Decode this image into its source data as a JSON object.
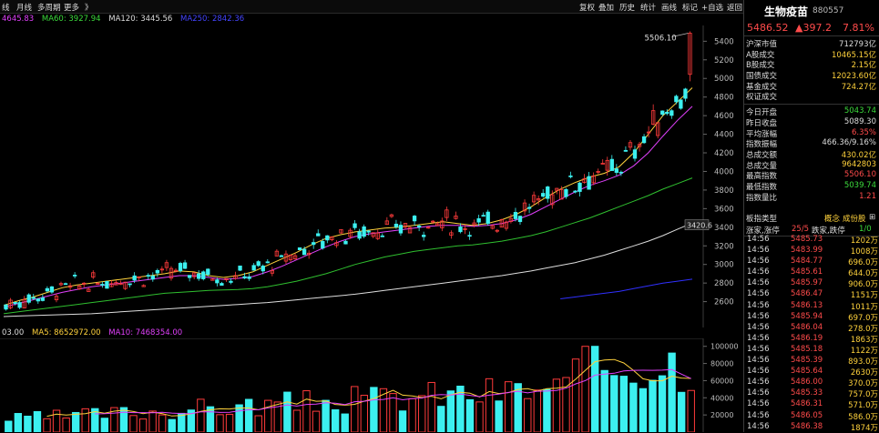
{
  "toolbar": {
    "left_items": [
      "线",
      "月线",
      "多周期",
      "更多",
      "》"
    ],
    "right_items": [
      "复权",
      "叠加",
      "历史",
      "统计",
      "画线",
      "标记",
      "+自选",
      "返回"
    ]
  },
  "ma_legend": [
    {
      "label": "4645.83",
      "color": "#e040fb"
    },
    {
      "label": "MA60: 3927.94",
      "color": "#3cdc3c"
    },
    {
      "label": "MA120: 3445.56",
      "color": "#dddddd"
    },
    {
      "label": "MA250: 2842.36",
      "color": "#4444ff"
    }
  ],
  "vol_legend": [
    {
      "label": "03.00",
      "color": "#dddddd"
    },
    {
      "label": "MA5: 8652972.00",
      "color": "#ffd23c"
    },
    {
      "label": "MA10: 7468354.00",
      "color": "#e040fb"
    }
  ],
  "colors": {
    "up": "#ff3b3b",
    "down": "#3cf0f0",
    "ma5": "#ffd23c",
    "ma10": "#e040fb",
    "ma60": "#2fbf2f",
    "ma120": "#dddddd",
    "ma250": "#3030ff"
  },
  "chart_data": {
    "type": "candlestick",
    "price_axis": {
      "ticks": [
        2600,
        2800,
        3000,
        3200,
        3400,
        3600,
        3800,
        4000,
        4200,
        4400,
        4600,
        4800,
        5000,
        5200,
        5400
      ],
      "ylim": [
        2420,
        5550
      ]
    },
    "annotations": {
      "high_label": "5506.10",
      "price_marker": "3420.6"
    },
    "ma_curves": {
      "ma5": [
        2560,
        2610,
        2650,
        2700,
        2750,
        2780,
        2800,
        2820,
        2840,
        2860,
        2880,
        2900,
        2930,
        2920,
        2880,
        2860,
        2880,
        2920,
        2990,
        3060,
        3130,
        3210,
        3280,
        3320,
        3350,
        3370,
        3390,
        3400,
        3420,
        3440,
        3460,
        3440,
        3420,
        3440,
        3480,
        3540,
        3620,
        3720,
        3810,
        3880,
        3940,
        3980,
        4050,
        4200,
        4400,
        4600,
        4750,
        4900
      ],
      "ma10": [
        2540,
        2580,
        2620,
        2660,
        2700,
        2730,
        2760,
        2780,
        2800,
        2820,
        2840,
        2860,
        2880,
        2880,
        2860,
        2840,
        2850,
        2870,
        2920,
        2980,
        3050,
        3120,
        3190,
        3250,
        3300,
        3330,
        3350,
        3370,
        3390,
        3410,
        3420,
        3420,
        3410,
        3420,
        3440,
        3480,
        3540,
        3620,
        3700,
        3780,
        3850,
        3900,
        3960,
        4060,
        4200,
        4380,
        4550,
        4700
      ],
      "ma60": [
        2470,
        2490,
        2510,
        2530,
        2550,
        2570,
        2590,
        2610,
        2630,
        2650,
        2670,
        2690,
        2700,
        2710,
        2720,
        2725,
        2730,
        2740,
        2760,
        2790,
        2820,
        2860,
        2900,
        2950,
        3000,
        3040,
        3080,
        3110,
        3140,
        3160,
        3180,
        3200,
        3210,
        3230,
        3250,
        3280,
        3310,
        3350,
        3400,
        3450,
        3500,
        3560,
        3620,
        3680,
        3740,
        3810,
        3870,
        3930
      ],
      "ma120": [
        2440,
        2445,
        2450,
        2455,
        2460,
        2465,
        2470,
        2480,
        2490,
        2500,
        2510,
        2520,
        2530,
        2540,
        2550,
        2560,
        2570,
        2580,
        2590,
        2605,
        2620,
        2635,
        2650,
        2665,
        2680,
        2700,
        2720,
        2740,
        2760,
        2780,
        2800,
        2820,
        2840,
        2860,
        2880,
        2905,
        2930,
        2960,
        2990,
        3020,
        3060,
        3100,
        3150,
        3200,
        3250,
        3310,
        3380,
        3445
      ],
      "ma250": [
        null,
        null,
        null,
        null,
        null,
        null,
        null,
        null,
        null,
        null,
        null,
        null,
        null,
        null,
        null,
        null,
        null,
        null,
        null,
        null,
        null,
        null,
        null,
        null,
        null,
        null,
        null,
        null,
        null,
        null,
        null,
        null,
        null,
        null,
        null,
        null,
        null,
        null,
        2630,
        2650,
        2670,
        2690,
        2710,
        2740,
        2770,
        2800,
        2820,
        2842
      ]
    },
    "candles_summary": {
      "start": 2560,
      "end": 5486.52,
      "high": 5506.1
    },
    "volume_axis": {
      "ticks": [
        20000,
        40000,
        60000,
        80000,
        100000
      ],
      "ylim": [
        0,
        105000
      ]
    },
    "volume_colors_note": "alternating up/down"
  },
  "panel": {
    "name": "生物疫苗",
    "code": "880557",
    "price": "5486.52",
    "change": "▲397.2",
    "pct": "7.81%",
    "stats1": [
      {
        "k": "沪深市值",
        "v": "712793亿",
        "c": "#dddddd"
      },
      {
        "k": "A股成交",
        "v": "10465.15亿",
        "c": "#ffd23c"
      },
      {
        "k": "B股成交",
        "v": "2.15亿",
        "c": "#ffd23c"
      },
      {
        "k": "国债成交",
        "v": "12023.60亿",
        "c": "#ffd23c"
      },
      {
        "k": "基金成交",
        "v": "724.27亿",
        "c": "#ffd23c"
      },
      {
        "k": "权证成交",
        "v": "",
        "c": "#ffd23c"
      }
    ],
    "stats2": [
      {
        "k": "今日开盘",
        "v": "5043.74",
        "c": "#3cdc3c"
      },
      {
        "k": "昨日收盘",
        "v": "5089.30",
        "c": "#dddddd"
      },
      {
        "k": "平均涨幅",
        "v": "6.35%",
        "c": "#ff4b4b"
      },
      {
        "k": "指数振幅",
        "v": "466.36/9.16%",
        "c": "#dddddd"
      },
      {
        "k": "总成交额",
        "v": "430.02亿",
        "c": "#ffd23c"
      },
      {
        "k": "总成交量",
        "v": "9642803",
        "c": "#ffd23c"
      },
      {
        "k": "最高指数",
        "v": "5506.10",
        "c": "#ff4b4b"
      },
      {
        "k": "最低指数",
        "v": "5039.74",
        "c": "#3cdc3c"
      },
      {
        "k": "指数量比",
        "v": "1.21",
        "c": "#ff4b4b"
      }
    ],
    "type_row": {
      "k": "板指类型",
      "v1": "概念",
      "v2": "成份股",
      "v3": "⊞"
    },
    "breadth_row": {
      "k1": "涨家,涨停",
      "v1": "25/5",
      "k2": "跌家,跌停",
      "v2": "1/0"
    },
    "ticks": [
      [
        "14:56",
        "5485.73",
        "1202万"
      ],
      [
        "14:56",
        "5483.99",
        "1008万"
      ],
      [
        "14:56",
        "5484.77",
        "696.0万"
      ],
      [
        "14:56",
        "5485.61",
        "644.0万"
      ],
      [
        "14:56",
        "5485.97",
        "906.0万"
      ],
      [
        "14:56",
        "5486.47",
        "1151万"
      ],
      [
        "14:56",
        "5486.13",
        "1011万"
      ],
      [
        "14:56",
        "5485.94",
        "697.0万"
      ],
      [
        "14:56",
        "5486.04",
        "278.0万"
      ],
      [
        "14:56",
        "5486.19",
        "1863万"
      ],
      [
        "14:56",
        "5485.18",
        "1122万"
      ],
      [
        "14:56",
        "5485.39",
        "893.0万"
      ],
      [
        "14:56",
        "5485.64",
        "2630万"
      ],
      [
        "14:56",
        "5486.00",
        "370.0万"
      ],
      [
        "14:56",
        "5485.33",
        "757.0万"
      ],
      [
        "14:56",
        "5486.31",
        "571.0万"
      ],
      [
        "14:56",
        "5486.05",
        "586.0万"
      ],
      [
        "14:56",
        "5486.38",
        "1874万"
      ]
    ]
  }
}
